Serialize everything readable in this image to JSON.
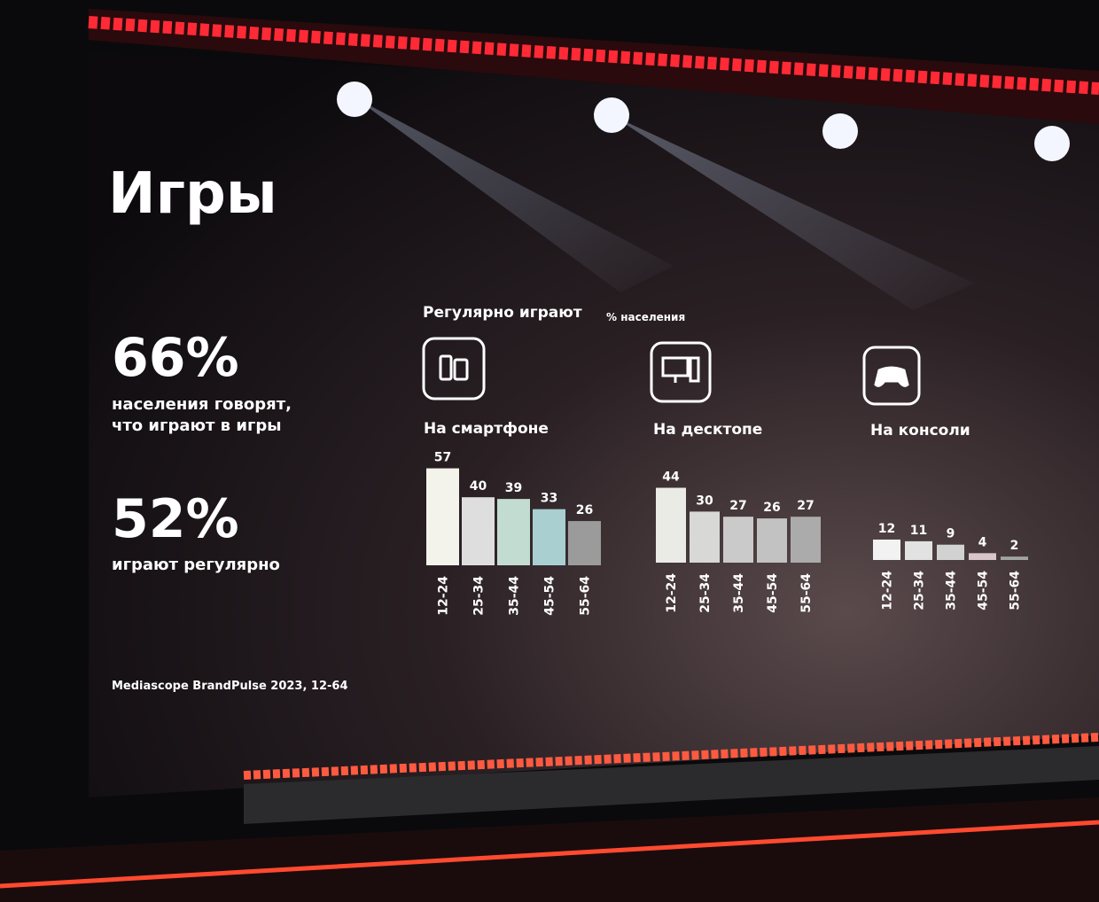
{
  "page": {
    "title": "Игры",
    "stats": [
      {
        "value": "66%",
        "lines": [
          "населения говорят,",
          "что играют в игры"
        ]
      },
      {
        "value": "52%",
        "lines": [
          "играют регулярно"
        ]
      }
    ],
    "source": "Mediascope BrandPulse 2023, 12-64",
    "chart_heading": "Регулярно играют",
    "chart_unit": "% населения"
  },
  "chart_data": [
    {
      "type": "bar",
      "title": "На смартфоне",
      "categories": [
        "12-24",
        "25-34",
        "35-44",
        "45-54",
        "55-64"
      ],
      "values": [
        57,
        40,
        39,
        33,
        26
      ],
      "colors": [
        "#f3f3ec",
        "#dedede",
        "#c3dcd2",
        "#a9cfd1",
        "#9b9b9b"
      ]
    },
    {
      "type": "bar",
      "title": "На десктопе",
      "categories": [
        "12-24",
        "25-34",
        "35-44",
        "45-54",
        "55-64"
      ],
      "values": [
        44,
        30,
        27,
        26,
        27
      ],
      "colors": [
        "#ebebe6",
        "#d8d8d6",
        "#cacaca",
        "#c2c2c2",
        "#ababab"
      ]
    },
    {
      "type": "bar",
      "title": "На консоли",
      "categories": [
        "12-24",
        "25-34",
        "35-44",
        "45-54",
        "55-64"
      ],
      "values": [
        12,
        11,
        9,
        4,
        2
      ],
      "colors": [
        "#f2f2f2",
        "#e2e2e2",
        "#d2d2d2",
        "#d9c6ca",
        "#a3a3a3"
      ]
    }
  ]
}
